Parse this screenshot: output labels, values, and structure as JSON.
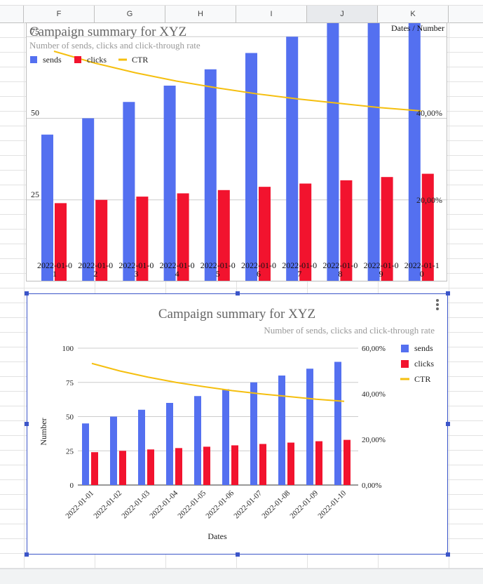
{
  "sheet": {
    "columns": [
      "F",
      "G",
      "H",
      "I",
      "J",
      "K"
    ],
    "selected_column": "J"
  },
  "colors": {
    "sends": "#5470f0",
    "clicks": "#f2132e",
    "ctr": "#f5bf0f",
    "selection": "#3b55c9"
  },
  "chart_data": [
    {
      "type": "bar",
      "title": "Campaign summary for XYZ",
      "subtitle": "Number of sends, clicks and click-through rate",
      "corner_label": "Dates / Number",
      "categories": [
        "2022-01-01",
        "2022-01-02",
        "2022-01-03",
        "2022-01-04",
        "2022-01-05",
        "2022-01-06",
        "2022-01-07",
        "2022-01-08",
        "2022-01-09",
        "2022-01-10"
      ],
      "category_labels_wrapped": [
        [
          "2022-01-0",
          "1"
        ],
        [
          "2022-01-0",
          "2"
        ],
        [
          "2022-01-0",
          "3"
        ],
        [
          "2022-01-0",
          "4"
        ],
        [
          "2022-01-0",
          "5"
        ],
        [
          "2022-01-0",
          "6"
        ],
        [
          "2022-01-0",
          "7"
        ],
        [
          "2022-01-0",
          "8"
        ],
        [
          "2022-01-0",
          "9"
        ],
        [
          "2022-01-1",
          "0"
        ]
      ],
      "series": [
        {
          "name": "sends",
          "values": [
            45,
            50,
            55,
            60,
            65,
            70,
            75,
            80,
            85,
            90
          ]
        },
        {
          "name": "clicks",
          "values": [
            24,
            25,
            26,
            27,
            28,
            29,
            30,
            31,
            32,
            33
          ]
        },
        {
          "name": "CTR",
          "type": "line",
          "axis": "right",
          "values": [
            0.533,
            0.5,
            0.473,
            0.45,
            0.431,
            0.414,
            0.4,
            0.388,
            0.376,
            0.367
          ]
        }
      ],
      "left_ticks": [
        "25",
        "50",
        "75"
      ],
      "right_ticks": [
        "20,00%",
        "40,00%"
      ],
      "ylim": [
        0,
        100
      ],
      "y2lim": [
        0,
        0.6
      ],
      "legend": "top-left",
      "grid": true
    },
    {
      "type": "bar",
      "title": "Campaign summary for XYZ",
      "subtitle": "Number of sends, clicks and click-through rate",
      "xlabel": "Dates",
      "ylabel": "Number",
      "categories": [
        "2022-01-01",
        "2022-01-02",
        "2022-01-03",
        "2022-01-04",
        "2022-01-05",
        "2022-01-06",
        "2022-01-07",
        "2022-01-08",
        "2022-01-09",
        "2022-01-10"
      ],
      "series": [
        {
          "name": "sends",
          "values": [
            45,
            50,
            55,
            60,
            65,
            70,
            75,
            80,
            85,
            90
          ]
        },
        {
          "name": "clicks",
          "values": [
            24,
            25,
            26,
            27,
            28,
            29,
            30,
            31,
            32,
            33
          ]
        },
        {
          "name": "CTR",
          "type": "line",
          "axis": "right",
          "values": [
            0.533,
            0.5,
            0.473,
            0.45,
            0.431,
            0.414,
            0.4,
            0.388,
            0.376,
            0.367
          ]
        }
      ],
      "left_ticks": [
        "0",
        "25",
        "50",
        "75",
        "100"
      ],
      "right_ticks": [
        "0,00%",
        "20,00%",
        "40,00%",
        "60,00%"
      ],
      "ylim": [
        0,
        100
      ],
      "y2lim": [
        0,
        0.6
      ],
      "legend": "right",
      "grid": true
    }
  ]
}
